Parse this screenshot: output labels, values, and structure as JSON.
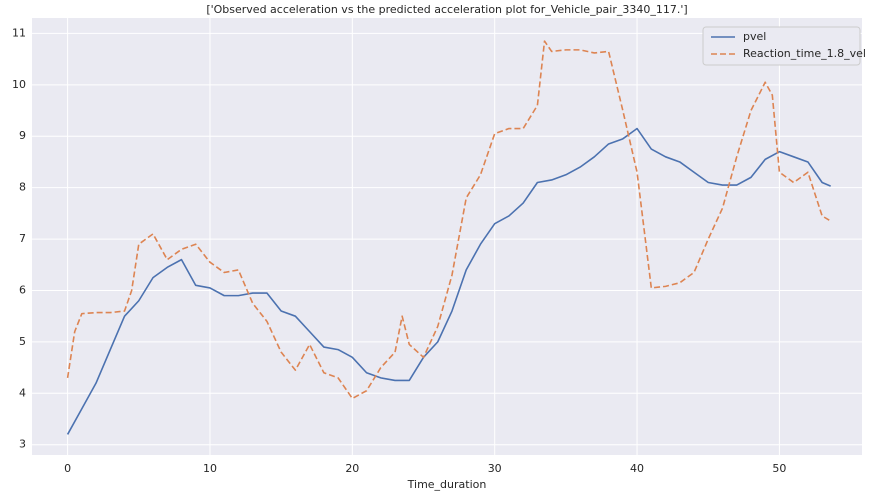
{
  "chart_data": {
    "type": "line",
    "title": "['Observed acceleration vs the predicted acceleration plot for_Vehicle_pair_3340_117.']",
    "x_label": "Time_duration",
    "xlim": [
      -2.5,
      55.8
    ],
    "ylim": [
      2.8,
      11.3
    ],
    "xticks": [
      0,
      10,
      20,
      30,
      40,
      50
    ],
    "yticks": [
      3,
      4,
      5,
      6,
      7,
      8,
      9,
      10,
      11
    ],
    "grid": true,
    "legend": "upper right",
    "series": [
      {
        "name": "pvel",
        "color": "#4c72b0",
        "dashed": false,
        "x": [
          0,
          1,
          2,
          3,
          4,
          5,
          6,
          7,
          8,
          9,
          10,
          11,
          12,
          13,
          14,
          15,
          16,
          17,
          18,
          19,
          20,
          21,
          22,
          23,
          24,
          25,
          26,
          27,
          28,
          29,
          30,
          31,
          32,
          33,
          34,
          35,
          36,
          37,
          38,
          39,
          40,
          41,
          42,
          43,
          44,
          45,
          46,
          47,
          48,
          49,
          50,
          51,
          52,
          53,
          53.6
        ],
        "values": [
          3.2,
          3.7,
          4.2,
          4.85,
          5.5,
          5.8,
          6.25,
          6.45,
          6.6,
          6.1,
          6.05,
          5.9,
          5.9,
          5.95,
          5.95,
          5.6,
          5.5,
          5.2,
          4.9,
          4.85,
          4.7,
          4.4,
          4.3,
          4.25,
          4.25,
          4.7,
          5.0,
          5.6,
          6.4,
          6.9,
          7.3,
          7.45,
          7.7,
          8.1,
          8.15,
          8.25,
          8.4,
          8.6,
          8.85,
          8.95,
          9.15,
          8.75,
          8.6,
          8.5,
          8.3,
          8.1,
          8.05,
          8.05,
          8.2,
          8.55,
          8.7,
          8.6,
          8.5,
          8.1,
          8.03
        ]
      },
      {
        "name": "Reaction_time_1.8_vel",
        "color": "#dd8452",
        "dashed": true,
        "x": [
          0,
          0.5,
          1,
          2,
          3,
          4,
          4.5,
          5,
          6,
          7,
          8,
          9,
          10,
          11,
          12,
          13,
          14,
          15,
          16,
          17,
          18,
          19,
          20,
          21,
          22,
          23,
          23.5,
          24,
          25,
          26,
          27,
          28,
          29,
          30,
          31,
          32,
          33,
          33.5,
          34,
          35,
          36,
          37,
          38,
          39,
          40,
          41,
          42,
          43,
          44,
          45,
          46,
          47,
          48,
          49,
          49.5,
          50,
          51,
          52,
          53,
          53.6
        ],
        "values": [
          4.3,
          5.2,
          5.55,
          5.57,
          5.57,
          5.6,
          6.0,
          6.9,
          7.1,
          6.6,
          6.8,
          6.9,
          6.55,
          6.35,
          6.4,
          5.75,
          5.4,
          4.8,
          4.45,
          4.95,
          4.4,
          4.3,
          3.9,
          4.05,
          4.5,
          4.8,
          5.5,
          4.95,
          4.7,
          5.3,
          6.3,
          7.8,
          8.25,
          9.05,
          9.15,
          9.15,
          9.6,
          10.85,
          10.65,
          10.68,
          10.68,
          10.62,
          10.65,
          9.5,
          8.3,
          6.05,
          6.08,
          6.15,
          6.35,
          7.0,
          7.6,
          8.6,
          9.5,
          10.05,
          9.8,
          8.3,
          8.1,
          8.3,
          7.45,
          7.35
        ]
      }
    ]
  }
}
